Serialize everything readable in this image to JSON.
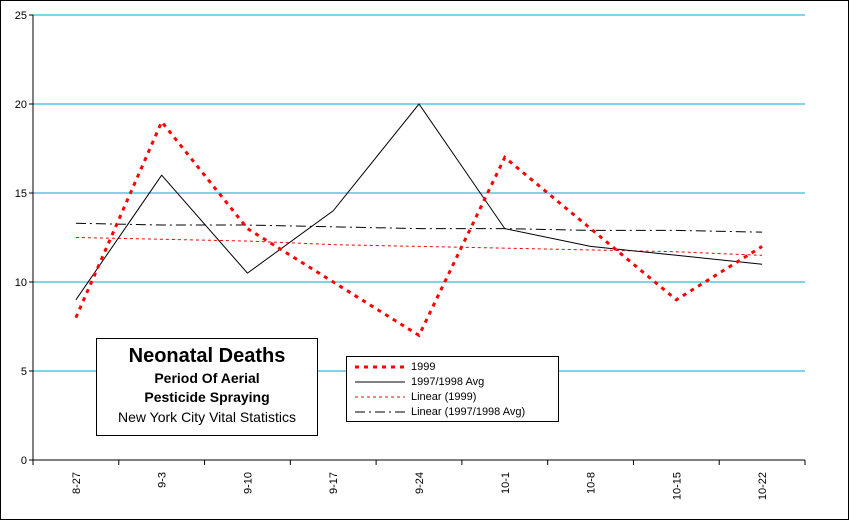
{
  "chart_data": {
    "type": "line",
    "title": "Neonatal Deaths",
    "subtitle_lines": [
      "Period Of Aerial",
      "Pesticide Spraying",
      "New York City Vital Statistics"
    ],
    "categories": [
      "8-27",
      "9-3",
      "9-10",
      "9-17",
      "9-24",
      "10-1",
      "10-8",
      "10-15",
      "10-22"
    ],
    "ylim": [
      0,
      25
    ],
    "yticks": [
      0,
      5,
      10,
      15,
      20,
      25
    ],
    "grid": "horizontal",
    "legend_position": "bottom-center",
    "series": [
      {
        "name": "1999",
        "values": [
          8,
          19,
          13,
          10,
          7,
          17,
          13,
          9,
          12
        ],
        "color": "#ff0000",
        "style": "dotted-thick"
      },
      {
        "name": "1997/1998 Avg",
        "values": [
          9,
          16,
          10.5,
          14,
          20,
          13,
          12,
          11.5,
          11
        ],
        "color": "#000000",
        "style": "solid"
      },
      {
        "name": "Linear (1999)",
        "values": [
          12.5,
          12.4,
          12.3,
          12.1,
          12.0,
          11.9,
          11.8,
          11.7,
          11.5
        ],
        "color": "#ff0000",
        "style": "dashed",
        "trendline": true
      },
      {
        "name": "Linear (1997/1998 Avg)",
        "values": [
          13.3,
          13.2,
          13.2,
          13.1,
          13.0,
          13.0,
          12.9,
          12.9,
          12.8
        ],
        "color": "#000000",
        "style": "dash-dot",
        "trendline": true
      }
    ],
    "colors": {
      "grid": "#00aacc",
      "axis": "#000000"
    }
  }
}
